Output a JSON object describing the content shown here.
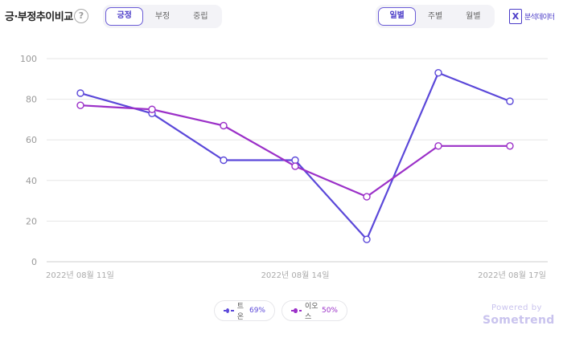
{
  "header": {
    "title": "긍·부정추이비교",
    "help_symbol": "?",
    "sentiment_tabs": [
      "긍정",
      "부정",
      "중립"
    ],
    "period_tabs": [
      "일별",
      "주별",
      "월별"
    ],
    "export_label": "분석데이터",
    "export_symbol": "X"
  },
  "chart_data": {
    "type": "line",
    "x": [
      "2022-08-11",
      "2022-08-12",
      "2022-08-13",
      "2022-08-14",
      "2022-08-15",
      "2022-08-16",
      "2022-08-17"
    ],
    "x_tick_labels": [
      {
        "index": 0,
        "label": "2022년 08월 11일"
      },
      {
        "index": 3,
        "label": "2022년 08월 14일"
      },
      {
        "index": 6,
        "label": "2022년 08월 17일"
      }
    ],
    "ylim": [
      0,
      100
    ],
    "yticks": [
      0,
      20,
      40,
      60,
      80,
      100
    ],
    "grid": true,
    "series": [
      {
        "name": "트온",
        "share": "69%",
        "color": "#5b48d9",
        "values": [
          83,
          73,
          50,
          50,
          11,
          93,
          79
        ]
      },
      {
        "name": "이오스",
        "share": "50%",
        "color": "#9b30c8",
        "values": [
          77,
          75,
          67,
          47,
          32,
          57,
          57
        ]
      }
    ],
    "legend_placement": "bottom-center"
  },
  "branding": {
    "powered_by": "Powered by",
    "name": "Sometrend"
  }
}
